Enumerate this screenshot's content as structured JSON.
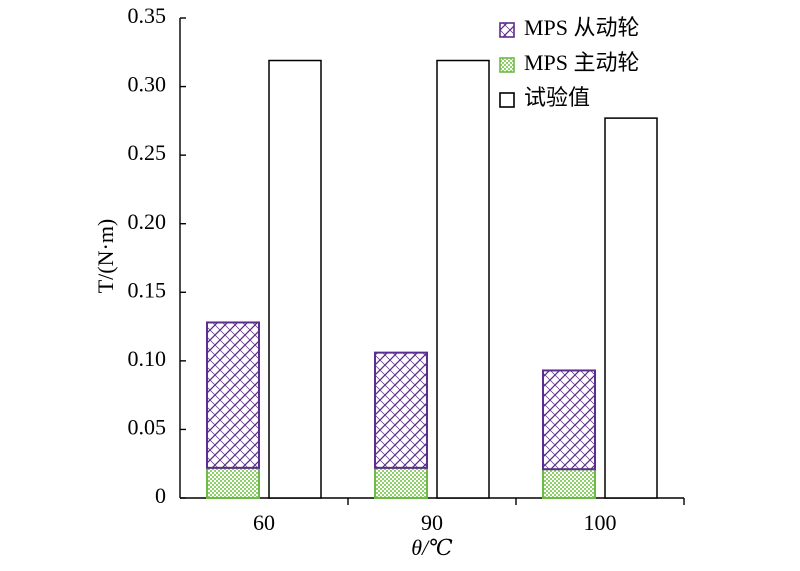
{
  "chart_data": {
    "type": "bar",
    "categories": [
      "60",
      "90",
      "100"
    ],
    "series": [
      {
        "name": "MPS 主动轮",
        "values": [
          0.022,
          0.022,
          0.021
        ],
        "stack": "mps",
        "color": "#8fd16a",
        "pattern": "dots"
      },
      {
        "name": "MPS 从动轮",
        "values": [
          0.106,
          0.084,
          0.072
        ],
        "stack": "mps",
        "color": "#5b2d8e",
        "pattern": "crosshatch"
      },
      {
        "name": "试验值",
        "values": [
          0.319,
          0.319,
          0.277
        ],
        "stack": "test",
        "color": "#000000",
        "pattern": "none"
      }
    ],
    "xlabel": "θ/℃",
    "ylabel": "T/(N·m)",
    "ylim": [
      0,
      0.35
    ],
    "yticks": [
      "0",
      "0.05",
      "0.10",
      "0.15",
      "0.20",
      "0.25",
      "0.30",
      "0.35"
    ],
    "legend_order": [
      "MPS 从动轮",
      "MPS 主动轮",
      "试验值"
    ],
    "legend_position": "top-right",
    "grid": false
  }
}
